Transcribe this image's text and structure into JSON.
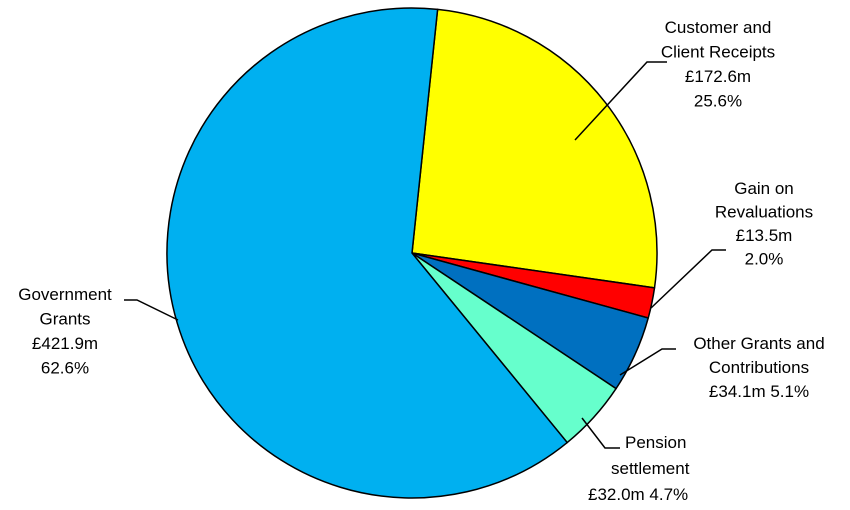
{
  "chart_data": {
    "type": "pie",
    "title": "",
    "slices": [
      {
        "name": "Customer and Client Receipts",
        "value": 172.6,
        "value_label": "£172.6m",
        "percent": 25.6,
        "percent_label": "25.6%",
        "color": "#ffff00",
        "label_lines": [
          "Customer and",
          "Client Receipts",
          "£172.6m",
          "25.6%"
        ]
      },
      {
        "name": "Gain on Revaluations",
        "value": 13.5,
        "value_label": "£13.5m",
        "percent": 2.0,
        "percent_label": "2.0%",
        "color": "#ff0000",
        "label_lines": [
          "Gain",
          "on",
          "Revaluations",
          "£13.5m",
          "2.0%"
        ]
      },
      {
        "name": "Other Grants and Contributions",
        "value": 34.1,
        "value_label": "£34.1m",
        "percent": 5.1,
        "percent_label": "5.1%",
        "color": "#0070c0",
        "label_lines": [
          "Other Grants and",
          "Contributions",
          "£34.1m 5.1%"
        ]
      },
      {
        "name": "Pension settlement",
        "value": 32.0,
        "value_label": "£32.0m",
        "percent": 4.7,
        "percent_label": "4.7%",
        "color": "#66ffcc",
        "label_lines": [
          "Pension",
          "settlement",
          "£32.0m 4.7%"
        ]
      },
      {
        "name": "Government Grants",
        "value": 421.9,
        "value_label": "£421.9m",
        "percent": 62.6,
        "percent_label": "62.6%",
        "color": "#00b0f0",
        "label_lines": [
          "Government",
          "Grants",
          "£421.9m",
          "62.6%"
        ]
      }
    ],
    "start_angle_deg": 6,
    "direction": "clockwise",
    "legend": "none"
  }
}
